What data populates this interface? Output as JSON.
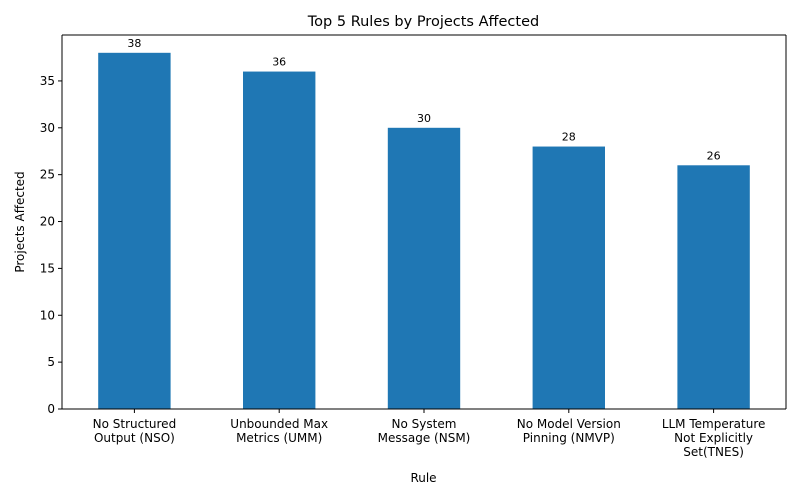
{
  "chart_data": {
    "type": "bar",
    "title": "Top 5 Rules by Projects Affected",
    "xlabel": "Rule",
    "ylabel": "Projects Affected",
    "categories": [
      [
        "No Structured",
        "Output (NSO)"
      ],
      [
        "Unbounded Max",
        "Metrics (UMM)"
      ],
      [
        "No System",
        "Message (NSM)"
      ],
      [
        "No Model Version",
        "Pinning (NMVP)"
      ],
      [
        "LLM Temperature",
        "Not Explicitly",
        "Set(TNES)"
      ]
    ],
    "values": [
      38,
      36,
      30,
      28,
      26
    ],
    "ylim": [
      0,
      39.9
    ],
    "yticks": [
      0,
      5,
      10,
      15,
      20,
      25,
      30,
      35
    ],
    "bar_color": "#1f77b4",
    "grid": false,
    "data_labels": true
  }
}
